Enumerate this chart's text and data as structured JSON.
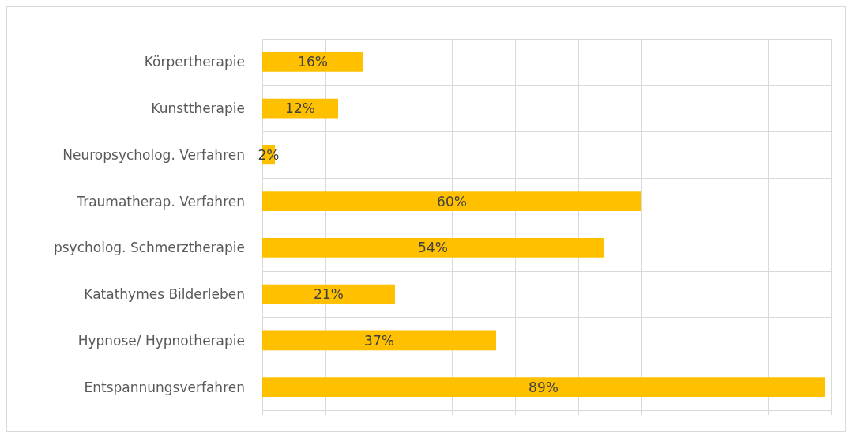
{
  "chart_data": {
    "type": "bar",
    "orientation": "horizontal",
    "categories": [
      "Körpertherapie",
      "Kunsttherapie",
      "Neuropsycholog. Verfahren",
      "Traumatherap. Verfahren",
      "psycholog. Schmerztherapie",
      "Katathymes Bilderleben",
      "Hypnose/ Hypnotherapie",
      "Entspannungsverfahren"
    ],
    "series": [
      {
        "color": "#ffc000",
        "values": [
          16,
          12,
          2,
          60,
          54,
          21,
          37,
          89
        ],
        "value_labels": [
          "16%",
          "12%",
          "2%",
          "60%",
          "54%",
          "21%",
          "37%",
          "89%"
        ]
      }
    ],
    "tick_labels": "y",
    "grid": true
  }
}
